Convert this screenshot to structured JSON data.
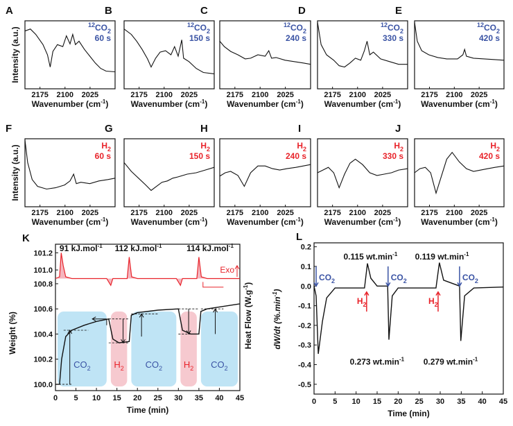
{
  "chart_data": [
    {
      "id": "A",
      "type": "line",
      "panel_label": "A",
      "gas_label": "12CO2",
      "gas_sup": "12",
      "gas_base": "CO",
      "gas_sub": "2",
      "time_label": "60 s",
      "ylabel": "Intensity (a.u.)",
      "xlabel_main": "Wavenumber (cm",
      "xlabel_sup": "-1",
      "xlabel_close": ")",
      "xticks": [
        "2175",
        "2100",
        "2025"
      ],
      "xlim": [
        2220,
        1950
      ]
    },
    {
      "id": "B",
      "type": "line",
      "panel_label": "B",
      "gas_label": "12CO2",
      "gas_sup": "12",
      "gas_base": "CO",
      "gas_sub": "2",
      "time_label": "150 s",
      "xlabel_main": "Wavenumber (cm",
      "xlabel_sup": "-1",
      "xlabel_close": ")",
      "xticks": [
        "2175",
        "2100",
        "2025"
      ],
      "xlim": [
        2220,
        1950
      ]
    },
    {
      "id": "C",
      "type": "line",
      "panel_label": "C",
      "gas_label": "12CO2",
      "gas_sup": "12",
      "gas_base": "CO",
      "gas_sub": "2",
      "time_label": "240 s",
      "xlabel_main": "Wavenumber (cm",
      "xlabel_sup": "-1",
      "xlabel_close": ")",
      "xticks": [
        "2175",
        "2100",
        "2025"
      ],
      "xlim": [
        2220,
        1950
      ]
    },
    {
      "id": "D",
      "type": "line",
      "panel_label": "D",
      "gas_label": "12CO2",
      "gas_sup": "12",
      "gas_base": "CO",
      "gas_sub": "2",
      "time_label": "330 s",
      "xlabel_main": "Wavenumber (cm",
      "xlabel_sup": "-1",
      "xlabel_close": ")",
      "xticks": [
        "2175",
        "2100",
        "2025"
      ],
      "xlim": [
        2220,
        1950
      ]
    },
    {
      "id": "E",
      "type": "line",
      "panel_label": "E",
      "gas_label": "12CO2",
      "gas_sup": "12",
      "gas_base": "CO",
      "gas_sub": "2",
      "time_label": "420 s",
      "xlabel_main": "Wavenumber (cm",
      "xlabel_sup": "-1",
      "xlabel_close": ")",
      "xticks": [
        "2175",
        "2100",
        "2025"
      ],
      "xlim": [
        2220,
        1950
      ]
    },
    {
      "id": "F",
      "type": "line",
      "panel_label": "F",
      "gas_label": "H2",
      "gas_base": "H",
      "gas_sub": "2",
      "time_label": "60 s",
      "ylabel": "Intensity (a.u.)",
      "xlabel_main": "Wavenumber (cm",
      "xlabel_sup": "-1",
      "xlabel_close": ")",
      "xticks": [
        "2175",
        "2100",
        "2025"
      ],
      "xlim": [
        2220,
        1950
      ]
    },
    {
      "id": "G",
      "type": "line",
      "panel_label": "G",
      "gas_label": "H2",
      "gas_base": "H",
      "gas_sub": "2",
      "time_label": "150 s",
      "xlabel_main": "Wavenumber (cm",
      "xlabel_sup": "-1",
      "xlabel_close": ")",
      "xticks": [
        "2175",
        "2100",
        "2025"
      ],
      "xlim": [
        2220,
        1950
      ]
    },
    {
      "id": "H",
      "type": "line",
      "panel_label": "H",
      "gas_label": "H2",
      "gas_base": "H",
      "gas_sub": "2",
      "time_label": "240 s",
      "xlabel_main": "Wavenumber (cm",
      "xlabel_sup": "-1",
      "xlabel_close": ")",
      "xticks": [
        "2175",
        "2100",
        "2025"
      ],
      "xlim": [
        2220,
        1950
      ]
    },
    {
      "id": "I",
      "type": "line",
      "panel_label": "I",
      "gas_label": "H2",
      "gas_base": "H",
      "gas_sub": "2",
      "time_label": "330 s",
      "xlabel_main": "Wavenumber (cm",
      "xlabel_sup": "-1",
      "xlabel_close": ")",
      "xticks": [
        "2175",
        "2100",
        "2025"
      ],
      "xlim": [
        2220,
        1950
      ]
    },
    {
      "id": "J",
      "type": "line",
      "panel_label": "J",
      "gas_label": "H2",
      "gas_base": "H",
      "gas_sub": "2",
      "time_label": "420 s",
      "xlabel_main": "Wavenumber (cm",
      "xlabel_sup": "-1",
      "xlabel_close": ")",
      "xticks": [
        "2175",
        "2100",
        "2025"
      ],
      "xlim": [
        2220,
        1950
      ]
    },
    {
      "id": "K",
      "type": "line",
      "panel_label": "K",
      "xlabel": "Time (min)",
      "ylabel_left": "Weight (%)",
      "ylabel_right": "Heat Flow (W.g-1)",
      "ylabel_right_main": "Heat Flow (W.g",
      "ylabel_right_sup": "-1",
      "ylabel_right_close": ")",
      "xlim": [
        0,
        45
      ],
      "ylim_weight": [
        99.95,
        100.75
      ],
      "ylim_heat": [
        100.75,
        101.3
      ],
      "xticks": [
        0,
        5,
        10,
        15,
        20,
        25,
        30,
        35,
        40,
        45
      ],
      "yticks_weight": [
        "100.0",
        "100.2",
        "100.4",
        "100.6",
        "100.8"
      ],
      "yticks_heat": [
        "101.0",
        "101.2"
      ],
      "heat_annotations": [
        "91 kJ.mol-1",
        "112 kJ.mol-1",
        "114 kJ.mol-1"
      ],
      "heat_annotations_main": [
        "91 kJ.mol",
        "112 kJ.mol",
        "114 kJ.mol"
      ],
      "heat_annotations_sup": "-1",
      "exo_label": "Exo",
      "regions": [
        {
          "gas": "CO2",
          "gas_base": "CO",
          "gas_sub": "2",
          "start": 0,
          "end": 13,
          "color": "#bfe4f5"
        },
        {
          "gas": "H2",
          "gas_base": "H",
          "gas_sub": "2",
          "start": 13,
          "end": 18,
          "color": "#f6c9cf"
        },
        {
          "gas": "CO2",
          "gas_base": "CO",
          "gas_sub": "2",
          "start": 18,
          "end": 30,
          "color": "#bfe4f5"
        },
        {
          "gas": "H2",
          "gas_base": "H",
          "gas_sub": "2",
          "start": 30,
          "end": 35,
          "color": "#f6c9cf"
        },
        {
          "gas": "CO2",
          "gas_base": "CO",
          "gas_sub": "2",
          "start": 35,
          "end": 45,
          "color": "#bfe4f5"
        }
      ],
      "weight_series": [
        [
          0,
          100.0
        ],
        [
          1,
          100.0
        ],
        [
          1.5,
          100.2
        ],
        [
          2.5,
          100.38
        ],
        [
          4,
          100.43
        ],
        [
          7,
          100.47
        ],
        [
          10,
          100.5
        ],
        [
          13,
          100.52
        ],
        [
          14,
          100.36
        ],
        [
          15.5,
          100.33
        ],
        [
          18,
          100.34
        ],
        [
          18.5,
          100.55
        ],
        [
          20,
          100.57
        ],
        [
          25,
          100.59
        ],
        [
          30,
          100.6
        ],
        [
          31,
          100.43
        ],
        [
          33,
          100.4
        ],
        [
          35,
          100.4
        ],
        [
          35.5,
          100.58
        ],
        [
          37,
          100.6
        ],
        [
          45,
          100.64
        ]
      ],
      "heat_series": [
        [
          0,
          100.9
        ],
        [
          1,
          100.92
        ],
        [
          1.4,
          101.2
        ],
        [
          1.9,
          101.05
        ],
        [
          2.5,
          100.92
        ],
        [
          4,
          100.9
        ],
        [
          12.5,
          100.9
        ],
        [
          13.5,
          100.82
        ],
        [
          14,
          100.9
        ],
        [
          17.5,
          100.9
        ],
        [
          18,
          101.15
        ],
        [
          18.6,
          100.92
        ],
        [
          20,
          100.9
        ],
        [
          29.5,
          100.9
        ],
        [
          30.5,
          100.82
        ],
        [
          31,
          100.9
        ],
        [
          34.5,
          100.9
        ],
        [
          35,
          101.15
        ],
        [
          35.6,
          100.92
        ],
        [
          37,
          100.9
        ],
        [
          45,
          100.9
        ]
      ]
    },
    {
      "id": "L",
      "type": "line",
      "panel_label": "L",
      "xlabel": "Time (min)",
      "ylabel": "dW/dt (%.min-1)",
      "ylabel_main": "dW/dt (%.min",
      "ylabel_sup": "-1",
      "ylabel_close": ")",
      "xlim": [
        0,
        45
      ],
      "ylim": [
        -0.55,
        0.22
      ],
      "xticks": [
        0,
        5,
        10,
        15,
        20,
        25,
        30,
        35,
        40,
        45
      ],
      "yticks": [
        "-0.5",
        "-0.4",
        "-0.3",
        "-0.2",
        "-0.1",
        "0.0",
        "0.1",
        "0.2"
      ],
      "annotations": [
        "0.115 wt.min-1",
        "0.119 wt.min-1",
        "0.273 wt.min-1",
        "0.279 wt.min-1"
      ],
      "annotations_main": [
        "0.115 wt.min",
        "0.119 wt.min",
        "0.273 wt.min",
        "0.279 wt.min"
      ],
      "annotations_sup": "-1",
      "gas_markers": [
        {
          "label": "CO2",
          "base": "CO",
          "sub": "2",
          "time": 0.5
        },
        {
          "label": "H2",
          "base": "H",
          "sub": "2",
          "time": 12.5
        },
        {
          "label": "CO2",
          "base": "CO",
          "sub": "2",
          "time": 17.6
        },
        {
          "label": "H2",
          "base": "H",
          "sub": "2",
          "time": 29.5
        },
        {
          "label": "CO2",
          "base": "CO",
          "sub": "2",
          "time": 34.6
        }
      ],
      "series": [
        [
          0,
          0.0
        ],
        [
          0.5,
          -0.05
        ],
        [
          1,
          -0.345
        ],
        [
          2,
          -0.18
        ],
        [
          3,
          -0.06
        ],
        [
          5,
          -0.01
        ],
        [
          12,
          -0.01
        ],
        [
          12.7,
          0.115
        ],
        [
          13.5,
          0.04
        ],
        [
          15,
          0.0
        ],
        [
          17.5,
          0.0
        ],
        [
          17.8,
          -0.273
        ],
        [
          18.6,
          -0.05
        ],
        [
          20,
          -0.01
        ],
        [
          29,
          -0.01
        ],
        [
          29.8,
          0.119
        ],
        [
          30.8,
          0.03
        ],
        [
          34.6,
          0.0
        ],
        [
          34.9,
          -0.279
        ],
        [
          35.8,
          -0.05
        ],
        [
          38,
          -0.01
        ],
        [
          45,
          -0.005
        ]
      ]
    }
  ]
}
